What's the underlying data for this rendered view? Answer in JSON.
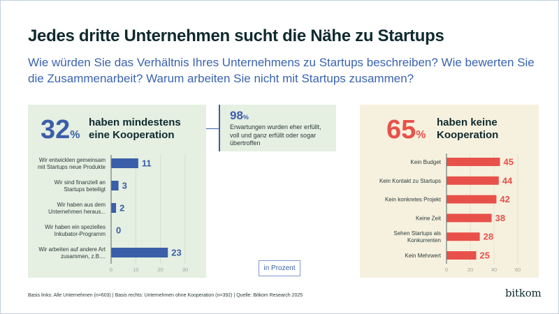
{
  "title": "Jedes dritte Unternehmen sucht die Nähe zu Startups",
  "subtitle": "Wie würden Sie das Verhältnis Ihres Unternehmens zu Startups beschreiben? Wie bewerten Sie die Zusammenarbeit? Warum arbeiten Sie nicht mit Startups zusammen?",
  "colors": {
    "blue": "#3a5ea8",
    "red": "#e8514a",
    "title": "#0f2a2e",
    "green_bg": "#e5efe2",
    "beige_bg": "#f6f1df"
  },
  "left_panel": {
    "pct_value": "32",
    "pct_symbol": "%",
    "headline_line1": "haben mindestens",
    "headline_line2": "eine Kooperation"
  },
  "mid_panel": {
    "pct_value": "98",
    "pct_symbol": "%",
    "text_line1": "Erwartungen wurden eher erfüllt,",
    "text_line2": "voll und ganz erfüllt oder sogar",
    "text_line3": "übertroffen"
  },
  "right_panel": {
    "pct_value": "65",
    "pct_symbol": "%",
    "headline_line1": "haben keine",
    "headline_line2": "Kooperation"
  },
  "unit_label": "in Prozent",
  "footnote": "Basis links: Alle Unternehmen (n=603) | Basis rechts: Unternehmen ohne Kooperation (n=392) | Quelle: Bitkom Research 2025",
  "logo": "bitkom",
  "chart_data": [
    {
      "type": "bar",
      "orientation": "horizontal",
      "title": "32% haben mindestens eine Kooperation",
      "xlabel": "",
      "ylabel": "",
      "unit": "in Prozent",
      "categories": [
        [
          "Wir entwicklen gemeinsam",
          "mit Startups neue Produkte"
        ],
        [
          "Wir sind finanziell an",
          "Startups beteiligt"
        ],
        [
          "Wir haben aus dem",
          "Unternehmen heraus..."
        ],
        [
          "Wir haben ein spezielles",
          "Inkubator-Programm"
        ],
        [
          "Wir arbeiten auf andere Art",
          "zusammen, z.B...."
        ]
      ],
      "values": [
        11,
        3,
        2,
        0,
        23
      ],
      "xlim": [
        0,
        30
      ],
      "xticks": [
        0,
        10,
        20,
        30
      ],
      "grid": true,
      "color": "#3a5ea8"
    },
    {
      "type": "bar",
      "orientation": "horizontal",
      "title": "65% haben keine Kooperation",
      "xlabel": "",
      "ylabel": "",
      "unit": "in Prozent",
      "categories": [
        [
          "Kein Budget"
        ],
        [
          "Kein Kontakt zu Startups"
        ],
        [
          "Kein konkretes Projekt"
        ],
        [
          "Keine Zeit"
        ],
        [
          "Sehen Startups als",
          "Konkurrenten"
        ],
        [
          "Kein Mehrwert"
        ]
      ],
      "values": [
        45,
        44,
        42,
        38,
        28,
        25
      ],
      "xlim": [
        0,
        60
      ],
      "xticks": [
        0,
        20,
        40,
        60
      ],
      "grid": true,
      "color": "#e8514a"
    }
  ]
}
